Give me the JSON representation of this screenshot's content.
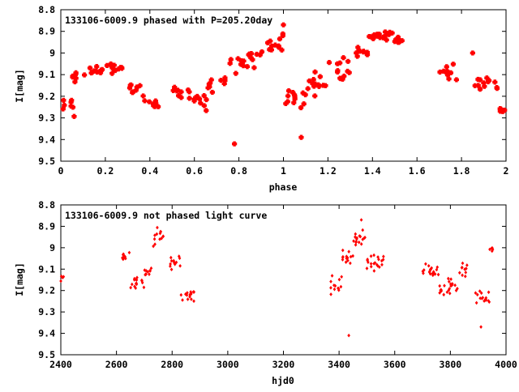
{
  "colors": {
    "points": "#ff0000",
    "axis": "#000000",
    "background": "#ffffff"
  },
  "chart_data": [
    {
      "type": "scatter",
      "title": "133106-6009.9 phased with P=205.20day",
      "xlabel": "phase",
      "ylabel": "I[mag]",
      "xlim": [
        0,
        2
      ],
      "ylim": [
        9.5,
        8.8
      ],
      "y_inverted": true,
      "grid": false,
      "xticks": [
        0,
        0.2,
        0.4,
        0.6,
        0.8,
        1,
        1.2,
        1.4,
        1.6,
        1.8,
        2
      ],
      "xtick_labels": [
        "0",
        "0.2",
        "0.4",
        "0.6",
        "0.8",
        "1",
        "1.2",
        "1.4",
        "1.6",
        "1.8",
        "2"
      ],
      "yticks": [
        8.8,
        8.9,
        9.0,
        9.1,
        9.2,
        9.3,
        9.4,
        9.5
      ],
      "ytick_labels": [
        "8.8",
        "8.9",
        "9",
        "9.1",
        "9.2",
        "9.3",
        "9.4",
        "9.5"
      ],
      "marker": "filled-plus",
      "segments": [
        [
          0.0,
          0.06,
          9.24,
          0.07
        ],
        [
          0.05,
          0.1,
          9.11,
          0.04
        ],
        [
          0.1,
          0.28,
          9.07,
          0.04
        ],
        [
          0.28,
          0.36,
          9.16,
          0.05
        ],
        [
          0.36,
          0.44,
          9.23,
          0.05
        ],
        [
          0.5,
          0.58,
          9.19,
          0.05
        ],
        [
          0.58,
          0.66,
          9.22,
          0.06
        ],
        [
          0.66,
          0.74,
          9.14,
          0.07
        ],
        [
          0.76,
          0.82,
          9.05,
          0.08
        ],
        [
          0.82,
          0.9,
          9.02,
          0.07
        ],
        [
          0.9,
          1.0,
          8.96,
          0.06
        ],
        [
          1.0,
          1.1,
          9.21,
          0.07
        ],
        [
          1.1,
          1.2,
          9.14,
          0.08
        ],
        [
          1.2,
          1.3,
          9.07,
          0.07
        ],
        [
          1.3,
          1.38,
          9.0,
          0.05
        ],
        [
          1.38,
          1.5,
          8.92,
          0.04
        ],
        [
          1.5,
          1.56,
          8.94,
          0.03
        ],
        [
          1.7,
          1.78,
          9.09,
          0.08
        ],
        [
          1.86,
          1.96,
          9.14,
          0.06
        ],
        [
          1.96,
          2.0,
          9.26,
          0.04
        ]
      ],
      "extra_points": [
        [
          0.78,
          9.42
        ],
        [
          1.08,
          9.39
        ],
        [
          1.85,
          9.0
        ],
        [
          1.0,
          8.87
        ]
      ]
    },
    {
      "type": "scatter",
      "title": "133106-6009.9 not phased light curve",
      "xlabel": "hjd0",
      "ylabel": "I[mag]",
      "xlim": [
        2400,
        4000
      ],
      "ylim": [
        9.5,
        8.8
      ],
      "y_inverted": true,
      "grid": false,
      "xticks": [
        2400,
        2600,
        2800,
        3000,
        3200,
        3400,
        3600,
        3800,
        4000
      ],
      "xtick_labels": [
        "2400",
        "2600",
        "2800",
        "3000",
        "3200",
        "3400",
        "3600",
        "3800",
        "4000"
      ],
      "yticks": [
        8.8,
        8.9,
        9.0,
        9.1,
        9.2,
        9.3,
        9.4,
        9.5
      ],
      "ytick_labels": [
        "8.8",
        "8.9",
        "9",
        "9.1",
        "9.2",
        "9.3",
        "9.4",
        "9.5"
      ],
      "marker": "diamond",
      "segments": [
        [
          2400,
          2410,
          9.15,
          0.04
        ],
        [
          2620,
          2650,
          9.04,
          0.03
        ],
        [
          2650,
          2700,
          9.16,
          0.05
        ],
        [
          2700,
          2730,
          9.12,
          0.05
        ],
        [
          2730,
          2770,
          8.95,
          0.06
        ],
        [
          2790,
          2830,
          9.07,
          0.05
        ],
        [
          2830,
          2880,
          9.22,
          0.06
        ],
        [
          3370,
          3410,
          9.18,
          0.06
        ],
        [
          3410,
          3450,
          9.05,
          0.06
        ],
        [
          3450,
          3500,
          8.96,
          0.05
        ],
        [
          3500,
          3560,
          9.07,
          0.05
        ],
        [
          3700,
          3760,
          9.11,
          0.04
        ],
        [
          3760,
          3790,
          9.2,
          0.05
        ],
        [
          3790,
          3830,
          9.18,
          0.05
        ],
        [
          3830,
          3860,
          9.1,
          0.05
        ],
        [
          3890,
          3940,
          9.23,
          0.05
        ],
        [
          3940,
          3955,
          9.01,
          0.02
        ]
      ],
      "extra_points": [
        [
          3435,
          9.41
        ],
        [
          3480,
          8.87
        ],
        [
          3910,
          9.37
        ]
      ]
    }
  ]
}
